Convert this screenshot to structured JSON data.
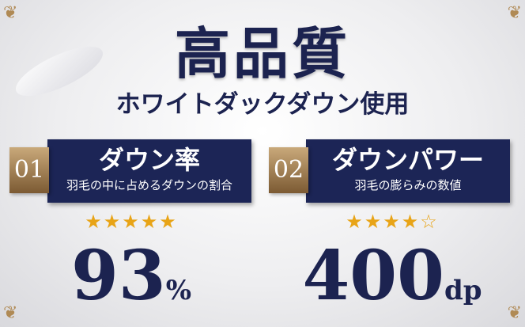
{
  "title": "高品質",
  "subtitle": "ホワイトダックダウン使用",
  "items": [
    {
      "badge": "01",
      "heading": "ダウン率",
      "description": "羽毛の中に占めるダウンの割合",
      "rating": 5,
      "rating_max": 5,
      "stars": "★★★★★",
      "value": "93",
      "unit": "%"
    },
    {
      "badge": "02",
      "heading": "ダウンパワー",
      "description": "羽毛の膨らみの数値",
      "rating": 4,
      "rating_max": 5,
      "stars": "★★★★☆",
      "value": "400",
      "unit": "dp"
    }
  ],
  "colors": {
    "navy": "#1c2556",
    "gold": "#b08a55",
    "star": "#e8a417"
  }
}
